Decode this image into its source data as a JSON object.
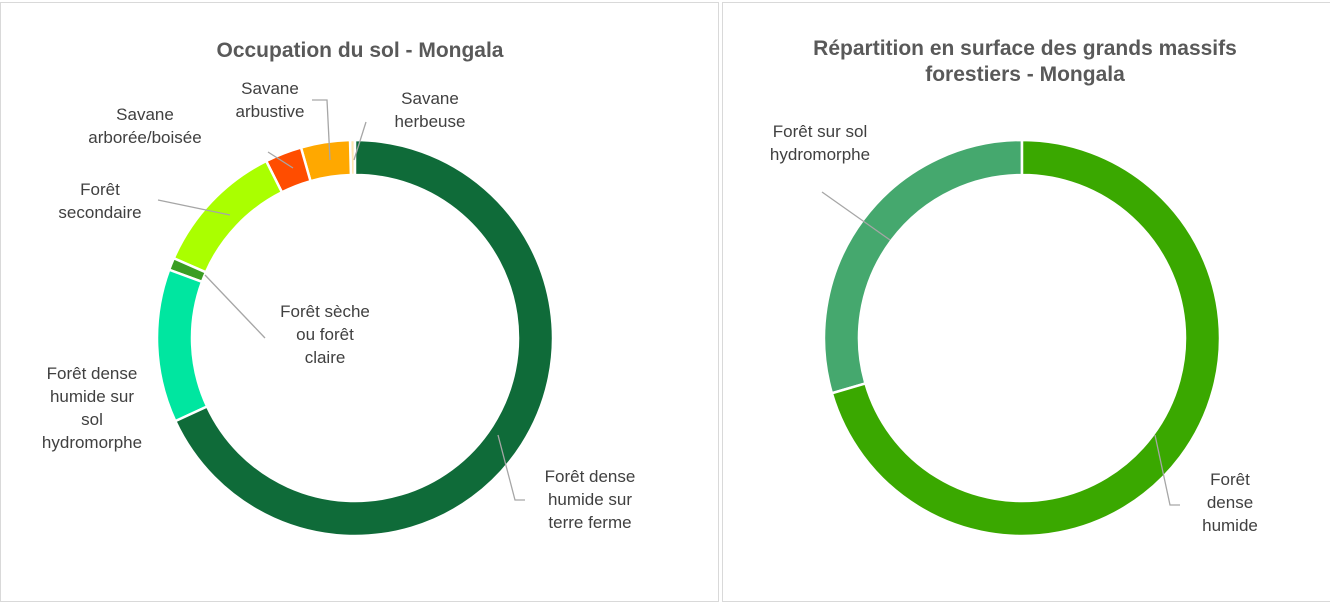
{
  "chart_data": [
    {
      "type": "donut",
      "title": "Occupation du sol - Mongala",
      "categories": [
        "Forêt dense humide sur terre ferme",
        "Forêt dense humide sur sol hydromorphe",
        "Forêt sèche ou forêt claire",
        "Forêt secondaire",
        "Savane arborée/boisée",
        "Savane arbustive",
        "Savane herbeuse"
      ],
      "values": [
        68.1,
        12.5,
        1,
        11,
        3,
        4,
        0.4
      ],
      "colors": [
        "#0f6b39",
        "#00e6a0",
        "#3a9d23",
        "#aaff00",
        "#ff4d00",
        "#ffa800",
        "#ffe6b0"
      ]
    },
    {
      "type": "donut",
      "title": "Répartition en surface des grands massifs forestiers - Mongala",
      "categories": [
        "Forêt dense humide",
        "Forêt sur sol hydromorphe"
      ],
      "values": [
        70.5,
        29.5
      ],
      "colors": [
        "#3aa800",
        "#45a86e"
      ]
    }
  ]
}
